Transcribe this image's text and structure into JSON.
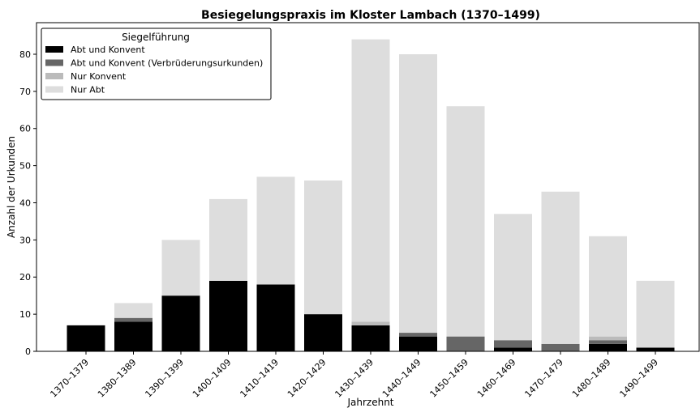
{
  "chart_data": {
    "type": "stacked_bar",
    "title": "Besiegelungspraxis im Kloster Lambach (1370–1499)",
    "x_label": "Jahrzehnt",
    "y_label": "Anzahl der Urkunden",
    "legend_title": "Siegelführung",
    "legend_position": "upper left",
    "categories": [
      "1370–1379",
      "1380–1389",
      "1390–1399",
      "1400–1409",
      "1410–1419",
      "1420–1429",
      "1430–1439",
      "1440–1449",
      "1450–1459",
      "1460–1469",
      "1470–1479",
      "1480–1489",
      "1490–1499"
    ],
    "series": [
      {
        "name": "Abt und Konvent",
        "color": "#000000",
        "values": [
          7,
          8,
          15,
          19,
          18,
          10,
          7,
          4,
          0,
          1,
          0,
          2,
          1
        ]
      },
      {
        "name": "Abt und Konvent (Verbrüderungsurkunden)",
        "color": "#666666",
        "values": [
          0,
          1,
          0,
          0,
          0,
          0,
          0,
          1,
          4,
          2,
          2,
          1,
          0
        ]
      },
      {
        "name": "Nur Konvent",
        "color": "#bbbbbb",
        "values": [
          0,
          0,
          0,
          0,
          0,
          0,
          1,
          0,
          0,
          0,
          0,
          1,
          0
        ]
      },
      {
        "name": "Nur Abt",
        "color": "#dddddd",
        "values": [
          0,
          4,
          15,
          22,
          29,
          36,
          76,
          75,
          62,
          34,
          41,
          27,
          18
        ]
      }
    ],
    "ylim": [
      0,
      88.5
    ],
    "yticks": [
      0,
      10,
      20,
      30,
      40,
      50,
      60,
      70,
      80
    ]
  }
}
